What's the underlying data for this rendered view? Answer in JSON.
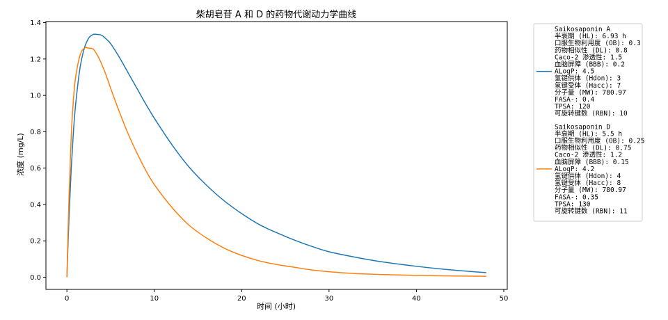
{
  "chart_data": {
    "type": "line",
    "title": "柴胡皂苷 A 和 D 的药物代谢动力学曲线",
    "xlabel": "时间 (小时)",
    "ylabel": "浓度 (mg/L)",
    "xlim": [
      -2.4,
      50.4
    ],
    "ylim": [
      -0.067,
      1.406
    ],
    "xticks": [
      0,
      10,
      20,
      30,
      40,
      50
    ],
    "yticks": [
      0.0,
      0.2,
      0.4,
      0.6,
      0.8,
      1.0,
      1.2,
      1.4
    ],
    "xtick_labels": [
      "0",
      "10",
      "20",
      "30",
      "40",
      "50"
    ],
    "ytick_labels": [
      "0.0",
      "0.2",
      "0.4",
      "0.6",
      "0.8",
      "1.0",
      "1.2",
      "1.4"
    ],
    "grid": false,
    "legend_position": "outside-right",
    "x": [
      0,
      0.25,
      0.5,
      0.75,
      1,
      1.5,
      2,
      2.5,
      3,
      3.5,
      4,
      4.5,
      5,
      6,
      7,
      8,
      9,
      10,
      12,
      14,
      16,
      18,
      20,
      22,
      24,
      26,
      28,
      30,
      33,
      36,
      40,
      44,
      48
    ],
    "series": [
      {
        "name": "Saikosaponin A",
        "color": "#1f77b4",
        "legend_lines": [
          "Saikosaponin A",
          "半衰期 (HL): 6.93 h",
          "口服生物利用度 (OB): 0.3",
          "药物相似性 (DL): 0.8",
          "Caco-2 渗透性: 1.5",
          "血脑屏障 (BBB): 0.2",
          "ALogP: 4.5",
          "氢键供体 (Hdon): 3",
          "氢键受体 (Hacc): 7",
          "分子量 (MW): 780.97",
          "FASA-: 0.4",
          "TPSA: 120",
          "可旋转键数 (RBN): 10"
        ],
        "values": [
          0,
          0.34,
          0.6,
          0.8,
          0.95,
          1.15,
          1.26,
          1.315,
          1.335,
          1.335,
          1.33,
          1.31,
          1.285,
          1.21,
          1.125,
          1.04,
          0.955,
          0.875,
          0.73,
          0.605,
          0.505,
          0.42,
          0.35,
          0.29,
          0.245,
          0.205,
          0.17,
          0.14,
          0.11,
          0.085,
          0.06,
          0.04,
          0.025
        ]
      },
      {
        "name": "Saikosaponin D",
        "color": "#ff7f0e",
        "legend_lines": [
          "Saikosaponin D",
          "半衰期 (HL): 5.5 h",
          "口服生物利用度 (OB): 0.25",
          "药物相似性 (DL): 0.75",
          "Caco-2 渗透性: 1.2",
          "血脑屏障 (BBB): 0.15",
          "ALogP: 4.2",
          "氢键供体 (Hdon): 4",
          "氢键受体 (Hacc): 8",
          "分子量 (MW): 780.97",
          "FASA-: 0.35",
          "TPSA: 130",
          "可旋转键数 (RBN): 11"
        ],
        "values": [
          0,
          0.45,
          0.78,
          0.98,
          1.1,
          1.22,
          1.26,
          1.26,
          1.255,
          1.22,
          1.17,
          1.11,
          1.04,
          0.91,
          0.79,
          0.685,
          0.59,
          0.51,
          0.385,
          0.285,
          0.215,
          0.16,
          0.12,
          0.09,
          0.07,
          0.055,
          0.04,
          0.03,
          0.02,
          0.015,
          0.01,
          0.007,
          0.005
        ]
      }
    ]
  }
}
